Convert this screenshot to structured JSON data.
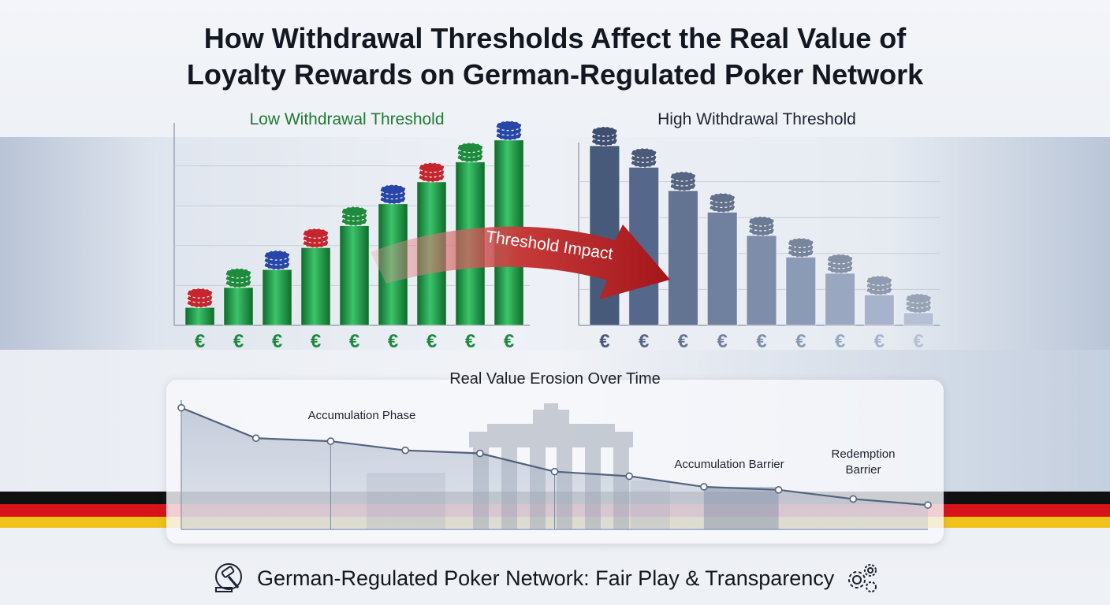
{
  "title": {
    "line1": "How Withdrawal Thresholds Affect the Real Value of",
    "line2": "Loyalty Rewards on German-Regulated Poker Network"
  },
  "subtitles": {
    "low": "Low Withdrawal Threshold",
    "high": "High Withdrawal Threshold"
  },
  "arrow_label": "Threshold Impact",
  "line_chart_title": "Real Value Erosion Over Time",
  "annotations": {
    "accumulation_phase": "Accumulation Phase",
    "accumulation_barrier": "Accumulation Barrier",
    "redemption_barrier_line1": "Redemption",
    "redemption_barrier_line2": "Barrier"
  },
  "footer": {
    "text": "German-Regulated Poker Network: Fair Play & Transparency",
    "left_icon": "gavel-icon",
    "right_icon": "gears-icon"
  },
  "colors": {
    "green": "#1f9a45",
    "slate": "#4d5f7f",
    "arrow_red": "#b01e22",
    "flag_black": "#101010",
    "flag_red": "#d7141a",
    "flag_gold": "#f0c21b"
  },
  "chart_data": [
    {
      "type": "bar",
      "title": "Low Withdrawal Threshold",
      "categories": [
        "€",
        "€",
        "€",
        "€",
        "€",
        "€",
        "€",
        "€",
        "€"
      ],
      "values": [
        9,
        19,
        28,
        39,
        50,
        61,
        72,
        82,
        93
      ],
      "ylim": [
        0,
        100
      ],
      "grid": true
    },
    {
      "type": "bar",
      "title": "High Withdrawal Threshold",
      "categories": [
        "€",
        "€",
        "€",
        "€",
        "€",
        "€",
        "€",
        "€",
        "€"
      ],
      "values": [
        100,
        88,
        75,
        63,
        50,
        38,
        29,
        17,
        7
      ],
      "ylim": [
        0,
        100
      ],
      "grid": true
    },
    {
      "type": "line",
      "title": "Real Value Erosion Over Time",
      "x": [
        0,
        1,
        2,
        3,
        4,
        5,
        6,
        7,
        8,
        9,
        10
      ],
      "values": [
        100,
        80,
        78,
        72,
        70,
        58,
        55,
        48,
        46,
        40,
        36
      ],
      "ylim": [
        20,
        105
      ],
      "grid": false
    }
  ]
}
